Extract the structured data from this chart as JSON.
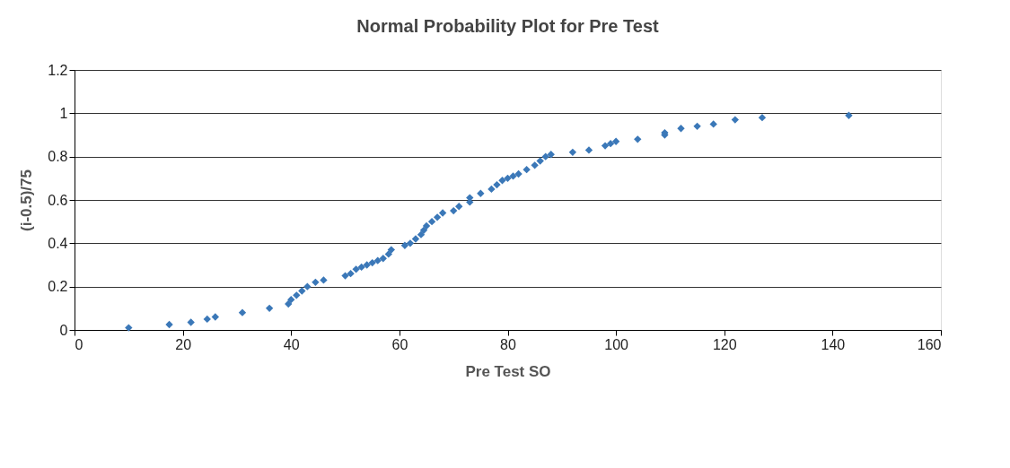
{
  "chart_data": {
    "type": "scatter",
    "title": "Normal Probability Plot for Pre Test",
    "xlabel": "Pre Test SO",
    "ylabel": "(i-0.5)/75",
    "x": [
      10,
      17.5,
      21.5,
      24.5,
      26,
      31,
      36,
      39.5,
      40,
      41,
      42,
      43,
      44.5,
      46,
      50,
      51,
      52,
      53,
      54,
      55,
      56,
      57,
      58,
      58.5,
      61,
      62,
      63,
      64,
      64.5,
      65,
      66,
      67,
      68,
      70,
      71,
      73,
      73,
      75,
      77,
      78,
      79,
      80,
      81,
      82,
      83.5,
      85,
      86,
      87,
      88,
      92,
      95,
      98,
      99,
      100,
      104,
      109,
      109,
      112,
      115,
      118,
      122,
      127,
      143
    ],
    "series": [
      {
        "color": "#3b78b8",
        "values": [
          0.01,
          0.025,
          0.035,
          0.05,
          0.06,
          0.08,
          0.1,
          0.12,
          0.14,
          0.16,
          0.18,
          0.2,
          0.22,
          0.23,
          0.25,
          0.26,
          0.28,
          0.29,
          0.3,
          0.31,
          0.32,
          0.33,
          0.35,
          0.37,
          0.39,
          0.4,
          0.42,
          0.44,
          0.46,
          0.48,
          0.5,
          0.52,
          0.54,
          0.55,
          0.57,
          0.59,
          0.61,
          0.63,
          0.65,
          0.67,
          0.69,
          0.7,
          0.71,
          0.72,
          0.74,
          0.76,
          0.78,
          0.8,
          0.81,
          0.82,
          0.83,
          0.85,
          0.86,
          0.87,
          0.88,
          0.9,
          0.91,
          0.93,
          0.94,
          0.95,
          0.97,
          0.98,
          0.99
        ]
      }
    ],
    "xlim": [
      0,
      160
    ],
    "xticks": [
      0,
      20,
      40,
      60,
      80,
      100,
      120,
      140,
      160
    ],
    "ylim": [
      0,
      1.2
    ],
    "yticks": [
      0,
      0.2,
      0.4,
      0.6,
      0.8,
      1,
      1.2
    ],
    "grid": "y",
    "marker": "diamond"
  }
}
